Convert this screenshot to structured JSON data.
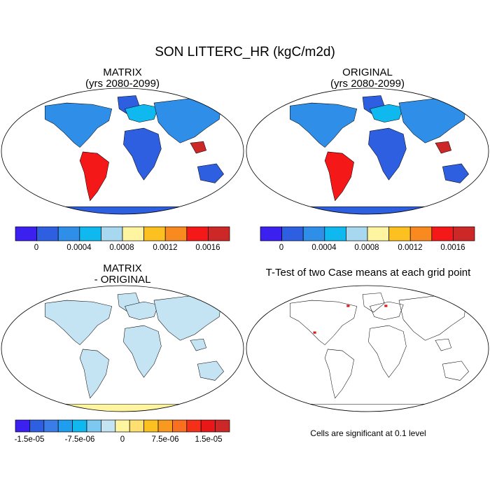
{
  "title": "SON LITTERC_HR (kgC/m2d)",
  "panels": [
    {
      "id": "matrix",
      "title_line1": "MATRIX",
      "title_line2": "(yrs 2080-2099)"
    },
    {
      "id": "original",
      "title_line1": "ORIGINAL",
      "title_line2": "(yrs 2080-2099)"
    },
    {
      "id": "diff",
      "title_line1": "MATRIX",
      "title_line2": "- ORIGINAL"
    },
    {
      "id": "ttest",
      "title_line1": "T-Test of two Case means at each grid point"
    }
  ],
  "colorbar_top": {
    "colors": [
      "#3b20f0",
      "#2d5fe0",
      "#2f8fe8",
      "#10b8f0",
      "#a8d8f0",
      "#fff5a0",
      "#fcc020",
      "#f88a20",
      "#f41818",
      "#cc2828"
    ],
    "labels": [
      "0",
      "0.0004",
      "0.0008",
      "0.0012",
      "0.0016"
    ]
  },
  "colorbar_diff": {
    "colors": [
      "#3b20f0",
      "#2d5fe0",
      "#3a7de8",
      "#1f9ef0",
      "#10b8f0",
      "#7cc8f0",
      "#c4e4f4",
      "#fff5a0",
      "#fde070",
      "#fcc020",
      "#f89a20",
      "#f87020",
      "#f43018",
      "#e81818",
      "#cc2828"
    ],
    "labels": [
      "-1.5e-05",
      "-7.5e-06",
      "0",
      "7.5e-06",
      "1.5e-05"
    ]
  },
  "significance_note": "Cells are significant at 0.1 level"
}
